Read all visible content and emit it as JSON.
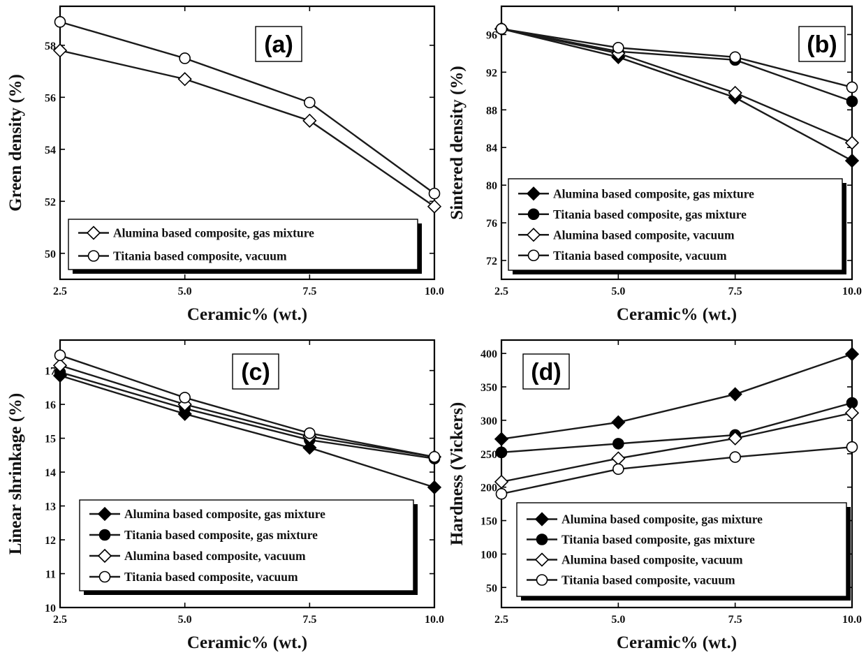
{
  "colors": {
    "line": "#1a1a1a",
    "filled_marker": "#000000",
    "open_marker": "#ffffff",
    "background": "#ffffff"
  },
  "chart_data": [
    {
      "type": "line",
      "panel_label": "(a)",
      "xlabel": "Ceramic% (wt.)",
      "ylabel": "Green density (%)",
      "x": [
        2.5,
        5.0,
        7.5,
        10.0
      ],
      "x_tick_labels": [
        "2.5",
        "5.0",
        "7.5",
        "10.0"
      ],
      "xlim": [
        2.5,
        10.0
      ],
      "ylim": [
        49.0,
        59.5
      ],
      "y_ticks": [
        50,
        52,
        54,
        56,
        58
      ],
      "grid": false,
      "legend_position": "bottom-right",
      "series": [
        {
          "name": "Alumina based composite, gas mixture",
          "marker": "diamond-open",
          "values": [
            57.8,
            56.7,
            55.1,
            51.8
          ]
        },
        {
          "name": "Titania based composite, vacuum",
          "marker": "circle-open",
          "values": [
            58.9,
            57.5,
            55.8,
            52.3
          ]
        }
      ]
    },
    {
      "type": "line",
      "panel_label": "(b)",
      "xlabel": "Ceramic% (wt.)",
      "ylabel": "Sintered density (%)",
      "x": [
        2.5,
        5.0,
        7.5,
        10.0
      ],
      "x_tick_labels": [
        "2.5",
        "5.0",
        "7.5",
        "10.0"
      ],
      "xlim": [
        2.5,
        10.0
      ],
      "ylim": [
        70.0,
        99.0
      ],
      "y_ticks": [
        72,
        76,
        80,
        84,
        88,
        92,
        96
      ],
      "grid": false,
      "legend_position": "bottom-right",
      "series": [
        {
          "name": "Alumina based composite, gas mixture",
          "marker": "diamond-filled",
          "values": [
            96.6,
            93.6,
            89.3,
            82.6
          ]
        },
        {
          "name": "Titania based composite, gas mixture",
          "marker": "circle-filled",
          "values": [
            96.6,
            94.2,
            93.3,
            88.9
          ]
        },
        {
          "name": "Alumina based composite, vacuum",
          "marker": "diamond-open",
          "values": [
            96.6,
            94.0,
            89.8,
            84.5
          ]
        },
        {
          "name": "Titania based composite, vacuum",
          "marker": "circle-open",
          "values": [
            96.6,
            94.6,
            93.6,
            90.4
          ]
        }
      ]
    },
    {
      "type": "line",
      "panel_label": "(c)",
      "xlabel": "Ceramic% (wt.)",
      "ylabel": "Linear shrinkage (%)",
      "x": [
        2.5,
        5.0,
        7.5,
        10.0
      ],
      "x_tick_labels": [
        "2.5",
        "5.0",
        "7.5",
        "10.0"
      ],
      "xlim": [
        2.5,
        10.0
      ],
      "ylim": [
        10.0,
        17.9
      ],
      "y_ticks": [
        10,
        11,
        12,
        13,
        14,
        15,
        16,
        17
      ],
      "grid": false,
      "legend_position": "bottom-right",
      "series": [
        {
          "name": "Alumina based composite, gas mixture",
          "marker": "diamond-filled",
          "values": [
            16.85,
            15.72,
            14.72,
            13.55
          ]
        },
        {
          "name": "Titania based composite, gas mixture",
          "marker": "circle-filled",
          "values": [
            16.95,
            15.88,
            14.95,
            14.4
          ]
        },
        {
          "name": "Alumina based composite, vacuum",
          "marker": "diamond-open",
          "values": [
            17.15,
            16.0,
            15.05,
            14.45
          ]
        },
        {
          "name": "Titania based composite, vacuum",
          "marker": "circle-open",
          "values": [
            17.45,
            16.2,
            15.15,
            14.45
          ]
        }
      ]
    },
    {
      "type": "line",
      "panel_label": "(d)",
      "xlabel": "Ceramic% (wt.)",
      "ylabel": "Hardness (Vickers)",
      "x": [
        2.5,
        5.0,
        7.5,
        10.0
      ],
      "x_tick_labels": [
        "2.5",
        "5.0",
        "7.5",
        "10.0"
      ],
      "xlim": [
        2.5,
        10.0
      ],
      "ylim": [
        20,
        420
      ],
      "y_ticks": [
        50,
        100,
        150,
        200,
        250,
        300,
        350,
        400
      ],
      "grid": false,
      "legend_position": "bottom-right",
      "series": [
        {
          "name": "Alumina based composite, gas mixture",
          "marker": "diamond-filled",
          "values": [
            272,
            297,
            339,
            399
          ]
        },
        {
          "name": "Titania based composite, gas mixture",
          "marker": "circle-filled",
          "values": [
            252,
            265,
            278,
            326
          ]
        },
        {
          "name": "Alumina based composite, vacuum",
          "marker": "diamond-open",
          "values": [
            208,
            243,
            273,
            311
          ]
        },
        {
          "name": "Titania based composite, vacuum",
          "marker": "circle-open",
          "values": [
            190,
            227,
            245,
            260
          ]
        }
      ]
    }
  ]
}
